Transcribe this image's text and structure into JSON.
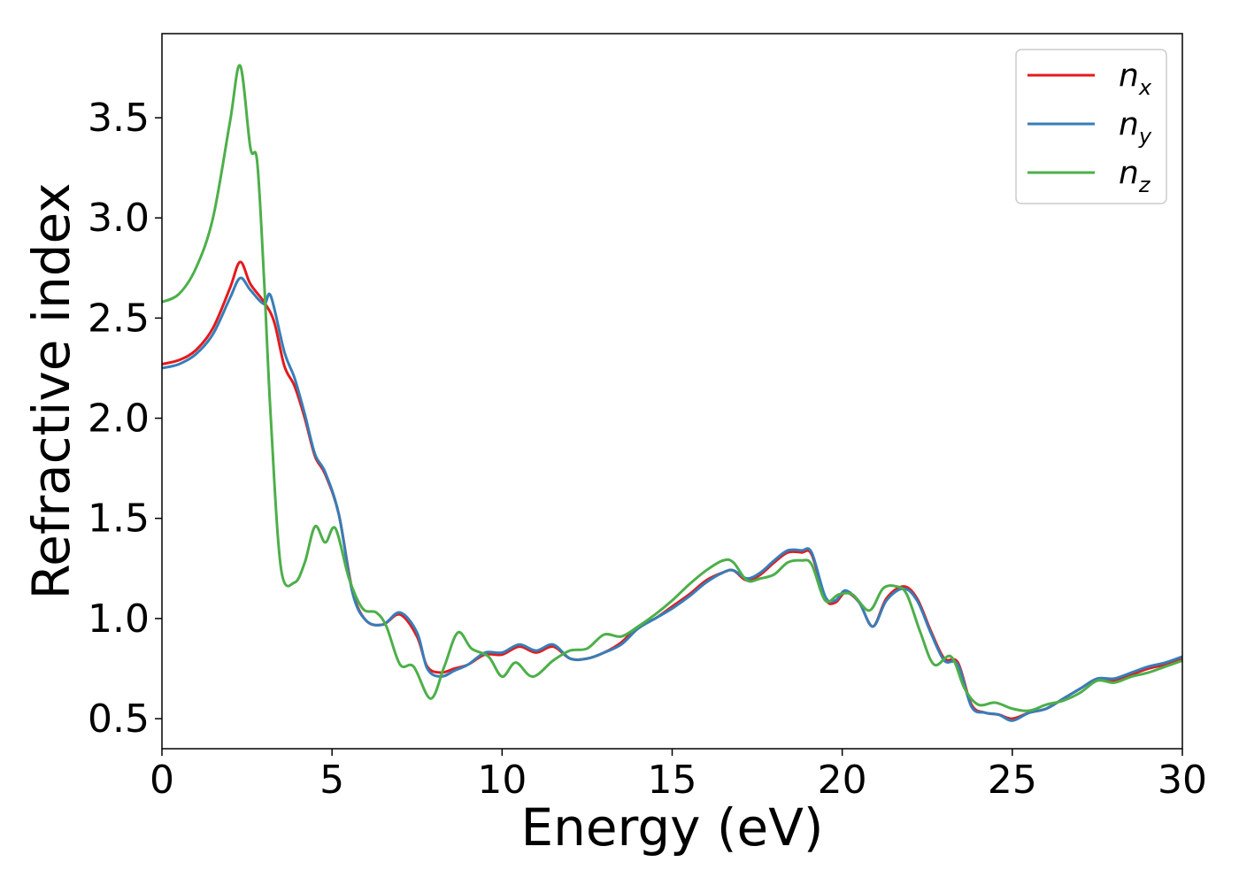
{
  "chart_data": {
    "type": "line",
    "title": "",
    "xlabel": "Energy (eV)",
    "ylabel": "Refractive index",
    "xlim": [
      0,
      30
    ],
    "ylim": [
      0.35,
      3.92
    ],
    "xticks": [
      0,
      5,
      10,
      15,
      20,
      25,
      30
    ],
    "yticks": [
      0.5,
      1.0,
      1.5,
      2.0,
      2.5,
      3.0,
      3.5
    ],
    "xtick_labels": [
      "0",
      "5",
      "10",
      "15",
      "20",
      "25",
      "30"
    ],
    "ytick_labels": [
      "0.5",
      "1.0",
      "1.5",
      "2.0",
      "2.5",
      "3.0",
      "3.5"
    ],
    "grid": false,
    "legend_position": "top-right",
    "series": [
      {
        "name": "n_x",
        "base": "n",
        "sub": "x",
        "color": "#e41a1c",
        "points": [
          [
            0,
            2.27
          ],
          [
            0.5,
            2.29
          ],
          [
            1.0,
            2.34
          ],
          [
            1.5,
            2.45
          ],
          [
            2.0,
            2.65
          ],
          [
            2.3,
            2.78
          ],
          [
            2.6,
            2.67
          ],
          [
            3.0,
            2.58
          ],
          [
            3.3,
            2.48
          ],
          [
            3.6,
            2.26
          ],
          [
            3.9,
            2.16
          ],
          [
            4.2,
            2.0
          ],
          [
            4.5,
            1.81
          ],
          [
            4.8,
            1.72
          ],
          [
            5.2,
            1.52
          ],
          [
            5.6,
            1.14
          ],
          [
            6.0,
            0.99
          ],
          [
            6.5,
            0.97
          ],
          [
            7.0,
            1.02
          ],
          [
            7.5,
            0.91
          ],
          [
            7.8,
            0.76
          ],
          [
            8.2,
            0.73
          ],
          [
            8.6,
            0.75
          ],
          [
            9.0,
            0.77
          ],
          [
            9.5,
            0.82
          ],
          [
            10.0,
            0.82
          ],
          [
            10.5,
            0.86
          ],
          [
            11.0,
            0.83
          ],
          [
            11.5,
            0.86
          ],
          [
            12.0,
            0.8
          ],
          [
            12.5,
            0.8
          ],
          [
            13.0,
            0.83
          ],
          [
            13.5,
            0.88
          ],
          [
            14.0,
            0.96
          ],
          [
            14.5,
            1.0
          ],
          [
            15.0,
            1.06
          ],
          [
            15.5,
            1.12
          ],
          [
            16.0,
            1.19
          ],
          [
            16.5,
            1.23
          ],
          [
            16.8,
            1.24
          ],
          [
            17.2,
            1.19
          ],
          [
            17.6,
            1.22
          ],
          [
            18.0,
            1.28
          ],
          [
            18.4,
            1.33
          ],
          [
            18.8,
            1.33
          ],
          [
            19.1,
            1.32
          ],
          [
            19.5,
            1.1
          ],
          [
            19.8,
            1.08
          ],
          [
            20.1,
            1.13
          ],
          [
            20.5,
            1.08
          ],
          [
            20.9,
            0.96
          ],
          [
            21.3,
            1.1
          ],
          [
            21.8,
            1.16
          ],
          [
            22.2,
            1.1
          ],
          [
            22.6,
            0.94
          ],
          [
            23.0,
            0.8
          ],
          [
            23.4,
            0.78
          ],
          [
            23.8,
            0.57
          ],
          [
            24.2,
            0.53
          ],
          [
            24.6,
            0.52
          ],
          [
            25.0,
            0.5
          ],
          [
            25.5,
            0.53
          ],
          [
            26.0,
            0.55
          ],
          [
            26.5,
            0.6
          ],
          [
            27.0,
            0.65
          ],
          [
            27.5,
            0.7
          ],
          [
            28.0,
            0.69
          ],
          [
            28.5,
            0.72
          ],
          [
            29.0,
            0.75
          ],
          [
            29.5,
            0.77
          ],
          [
            30.0,
            0.8
          ]
        ]
      },
      {
        "name": "n_y",
        "base": "n",
        "sub": "y",
        "color": "#377eb8",
        "points": [
          [
            0,
            2.25
          ],
          [
            0.5,
            2.27
          ],
          [
            1.0,
            2.32
          ],
          [
            1.5,
            2.42
          ],
          [
            2.0,
            2.6
          ],
          [
            2.3,
            2.7
          ],
          [
            2.6,
            2.64
          ],
          [
            3.0,
            2.57
          ],
          [
            3.2,
            2.61
          ],
          [
            3.6,
            2.33
          ],
          [
            3.9,
            2.2
          ],
          [
            4.2,
            2.02
          ],
          [
            4.5,
            1.82
          ],
          [
            4.8,
            1.73
          ],
          [
            5.2,
            1.52
          ],
          [
            5.6,
            1.13
          ],
          [
            6.0,
            0.99
          ],
          [
            6.5,
            0.97
          ],
          [
            7.0,
            1.03
          ],
          [
            7.5,
            0.93
          ],
          [
            7.8,
            0.75
          ],
          [
            8.2,
            0.71
          ],
          [
            8.6,
            0.74
          ],
          [
            9.0,
            0.77
          ],
          [
            9.5,
            0.83
          ],
          [
            10.0,
            0.83
          ],
          [
            10.5,
            0.87
          ],
          [
            11.0,
            0.84
          ],
          [
            11.5,
            0.87
          ],
          [
            12.0,
            0.8
          ],
          [
            12.5,
            0.8
          ],
          [
            13.0,
            0.83
          ],
          [
            13.5,
            0.87
          ],
          [
            14.0,
            0.95
          ],
          [
            14.5,
            1.0
          ],
          [
            15.0,
            1.05
          ],
          [
            15.5,
            1.11
          ],
          [
            16.0,
            1.18
          ],
          [
            16.5,
            1.23
          ],
          [
            16.8,
            1.24
          ],
          [
            17.2,
            1.2
          ],
          [
            17.6,
            1.23
          ],
          [
            18.0,
            1.29
          ],
          [
            18.4,
            1.34
          ],
          [
            18.8,
            1.34
          ],
          [
            19.1,
            1.33
          ],
          [
            19.5,
            1.11
          ],
          [
            19.8,
            1.09
          ],
          [
            20.1,
            1.14
          ],
          [
            20.5,
            1.08
          ],
          [
            20.9,
            0.96
          ],
          [
            21.3,
            1.09
          ],
          [
            21.8,
            1.15
          ],
          [
            22.2,
            1.09
          ],
          [
            22.6,
            0.93
          ],
          [
            23.0,
            0.79
          ],
          [
            23.4,
            0.77
          ],
          [
            23.8,
            0.56
          ],
          [
            24.2,
            0.53
          ],
          [
            24.6,
            0.52
          ],
          [
            25.0,
            0.49
          ],
          [
            25.5,
            0.53
          ],
          [
            26.0,
            0.55
          ],
          [
            26.5,
            0.6
          ],
          [
            27.0,
            0.65
          ],
          [
            27.5,
            0.7
          ],
          [
            28.0,
            0.7
          ],
          [
            28.5,
            0.73
          ],
          [
            29.0,
            0.76
          ],
          [
            29.5,
            0.78
          ],
          [
            30.0,
            0.81
          ]
        ]
      },
      {
        "name": "n_z",
        "base": "n",
        "sub": "z",
        "color": "#4daf4a",
        "points": [
          [
            0,
            2.58
          ],
          [
            0.5,
            2.62
          ],
          [
            1.0,
            2.75
          ],
          [
            1.5,
            3.0
          ],
          [
            2.0,
            3.48
          ],
          [
            2.3,
            3.76
          ],
          [
            2.6,
            3.35
          ],
          [
            2.8,
            3.28
          ],
          [
            3.0,
            2.7
          ],
          [
            3.2,
            2.0
          ],
          [
            3.5,
            1.25
          ],
          [
            3.9,
            1.18
          ],
          [
            4.2,
            1.28
          ],
          [
            4.5,
            1.46
          ],
          [
            4.8,
            1.38
          ],
          [
            5.1,
            1.45
          ],
          [
            5.5,
            1.2
          ],
          [
            5.9,
            1.05
          ],
          [
            6.3,
            1.03
          ],
          [
            6.6,
            0.96
          ],
          [
            7.0,
            0.77
          ],
          [
            7.4,
            0.76
          ],
          [
            7.9,
            0.6
          ],
          [
            8.3,
            0.76
          ],
          [
            8.7,
            0.93
          ],
          [
            9.1,
            0.85
          ],
          [
            9.6,
            0.81
          ],
          [
            10.0,
            0.71
          ],
          [
            10.4,
            0.78
          ],
          [
            10.9,
            0.71
          ],
          [
            11.5,
            0.79
          ],
          [
            12.0,
            0.84
          ],
          [
            12.5,
            0.85
          ],
          [
            13.0,
            0.92
          ],
          [
            13.5,
            0.91
          ],
          [
            14.0,
            0.96
          ],
          [
            14.5,
            1.02
          ],
          [
            15.0,
            1.09
          ],
          [
            15.5,
            1.17
          ],
          [
            16.0,
            1.24
          ],
          [
            16.5,
            1.29
          ],
          [
            16.8,
            1.28
          ],
          [
            17.2,
            1.19
          ],
          [
            17.6,
            1.2
          ],
          [
            18.0,
            1.22
          ],
          [
            18.4,
            1.28
          ],
          [
            18.8,
            1.29
          ],
          [
            19.1,
            1.27
          ],
          [
            19.5,
            1.09
          ],
          [
            19.9,
            1.12
          ],
          [
            20.3,
            1.12
          ],
          [
            20.8,
            1.04
          ],
          [
            21.2,
            1.15
          ],
          [
            21.6,
            1.16
          ],
          [
            21.9,
            1.12
          ],
          [
            22.3,
            0.93
          ],
          [
            22.7,
            0.77
          ],
          [
            23.2,
            0.81
          ],
          [
            23.6,
            0.65
          ],
          [
            24.0,
            0.57
          ],
          [
            24.5,
            0.58
          ],
          [
            25.0,
            0.55
          ],
          [
            25.5,
            0.54
          ],
          [
            26.0,
            0.57
          ],
          [
            26.5,
            0.59
          ],
          [
            27.0,
            0.63
          ],
          [
            27.5,
            0.69
          ],
          [
            28.0,
            0.68
          ],
          [
            28.5,
            0.71
          ],
          [
            29.0,
            0.73
          ],
          [
            29.5,
            0.76
          ],
          [
            30.0,
            0.79
          ]
        ]
      }
    ]
  }
}
